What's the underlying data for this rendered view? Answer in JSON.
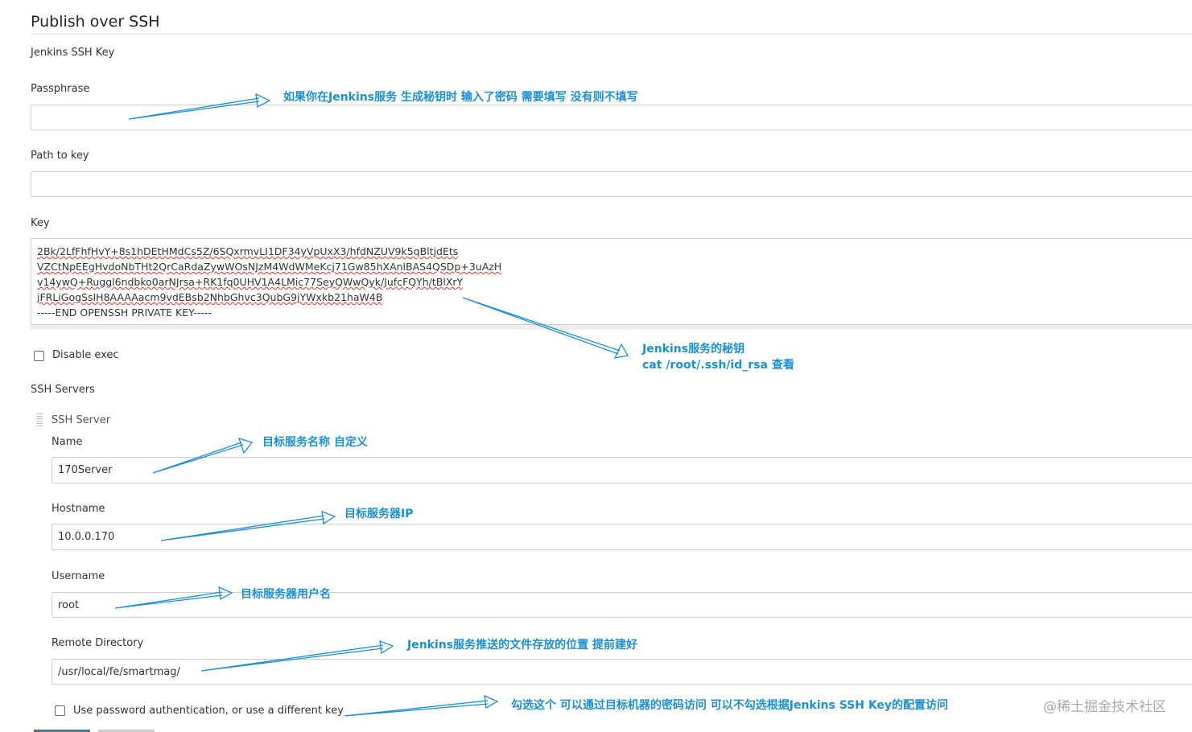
{
  "section_title": "Publish over SSH",
  "ssh_key_heading": "Jenkins SSH Key",
  "passphrase": {
    "label": "Passphrase"
  },
  "path_to_key": {
    "label": "Path to key"
  },
  "key": {
    "label": "Key",
    "lines": [
      "2Bk/2LfFhfHvY+8s1hDEtHMdCs5Z/6SQxrmvLI1DF34yVpUxX3/hfdNZUV9k5qBltjdEts",
      "VZCtNpEEgHvdoNbTHt2QrCaRdaZywWOsNJzM4WdWMeKcj71Gw85hXAnlBAS4QSDp+3uAzH",
      "v14ywQ+Ruggl6ndbko0arNJrsa+RK1fq0UHV1A4LMic77SeyQWwQyk/JufcFQYh/tBlXrY",
      "jFRLiGogSsIH8AAAAacm9vdEBsb2NhbGhvc3QubG9jYWxkb21haW4B",
      "-----END OPENSSH PRIVATE KEY-----"
    ]
  },
  "disable_exec": "Disable exec",
  "ssh_servers_heading": "SSH Servers",
  "ssh_server_heading": "SSH Server",
  "server_fields": [
    {
      "label": "Name",
      "value": "170Server"
    },
    {
      "label": "Hostname",
      "value": "10.0.0.170"
    },
    {
      "label": "Username",
      "value": "root"
    },
    {
      "label": "Remote Directory",
      "value": "/usr/local/fe/smartmag/"
    }
  ],
  "use_password": "Use password authentication, or use a different key",
  "annotations": [
    "如果你在Jenkins服务 生成秘钥时 输入了密码 需要填写 没有则不填写",
    "Jenkins服务的秘钥",
    "cat /root/.ssh/id_rsa 查看",
    "目标服务名称 自定义",
    "目标服务器IP",
    "目标服务器用户名",
    "Jenkins服务推送的文件存放的位置 提前建好",
    "勾选这个 可以通过目标机器的密码访问 可以不勾选根据Jenkins SSH Key的配置访问"
  ],
  "watermark": "@稀土掘金技术社区"
}
